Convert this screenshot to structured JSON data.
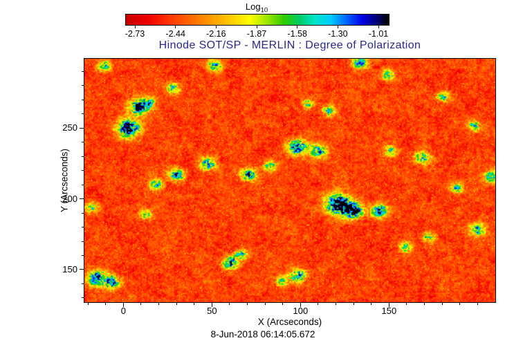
{
  "title": "Hinode SOT/SP - MERLIN : Degree of Polarization",
  "timestamp": "8-Jun-2018 06:14:05.672",
  "axes": {
    "xlabel": "X (Arcseconds)",
    "ylabel": "Y (Arcseconds)"
  },
  "colorbar": {
    "title_main": "Log",
    "title_sub": "10",
    "tick_labels": [
      "-2.73",
      "-2.44",
      "-2.16",
      "-1.87",
      "-1.58",
      "-1.30",
      "-1.01"
    ]
  },
  "colors": {
    "title_text": "#28288c",
    "axis_text": "#000000",
    "background": "#ffffff"
  },
  "chart_data": {
    "type": "heatmap",
    "title": "Hinode SOT/SP - MERLIN : Degree of Polarization",
    "xlabel": "X (Arcseconds)",
    "ylabel": "Y (Arcseconds)",
    "colorbar_scale": "Log10",
    "colorbar_tick_values": [
      -2.73,
      -2.44,
      -2.16,
      -1.87,
      -1.58,
      -1.3,
      -1.01
    ],
    "value_range_log10": [
      -2.8,
      -0.95
    ],
    "x_range": [
      -22,
      210
    ],
    "y_range": [
      127,
      299
    ],
    "x_ticks": [
      0,
      50,
      100,
      150
    ],
    "y_ticks": [
      150,
      200,
      250
    ],
    "x_minor_step": 10,
    "y_minor_step": 10,
    "description": "Quiet-Sun degree of polarization map: mostly low values (red/orange, ~10^-2.5) with magnetic-network patches of enhanced polarization (green/cyan/blue, up to ~10^-1)",
    "colormap_stops": [
      [
        0.0,
        "#c80000"
      ],
      [
        0.08,
        "#f00000"
      ],
      [
        0.16,
        "#ff3300"
      ],
      [
        0.24,
        "#ff6600"
      ],
      [
        0.32,
        "#ff9900"
      ],
      [
        0.4,
        "#ffcc00"
      ],
      [
        0.47,
        "#ffff00"
      ],
      [
        0.54,
        "#99e600"
      ],
      [
        0.6,
        "#33cc00"
      ],
      [
        0.66,
        "#00cc66"
      ],
      [
        0.72,
        "#00e6cc"
      ],
      [
        0.78,
        "#00ccff"
      ],
      [
        0.84,
        "#0066ff"
      ],
      [
        0.9,
        "#0000e6"
      ],
      [
        0.95,
        "#000080"
      ],
      [
        1.0,
        "#000000"
      ]
    ],
    "noise_seed": 11,
    "features": [
      {
        "x": 8.6,
        "y": 264.7,
        "r": 6,
        "s": 0.8
      },
      {
        "x": 2.7,
        "y": 250.0,
        "r": 7,
        "s": 0.85
      },
      {
        "x": 14.5,
        "y": 268.0,
        "r": 4,
        "s": 0.55
      },
      {
        "x": 28.0,
        "y": 278.0,
        "r": 4,
        "s": 0.5
      },
      {
        "x": 51.6,
        "y": 294.0,
        "r": 4.5,
        "s": 0.55
      },
      {
        "x": 133.6,
        "y": 296.4,
        "r": 5,
        "s": 0.6
      },
      {
        "x": 149.2,
        "y": 287.6,
        "r": 4,
        "s": 0.55
      },
      {
        "x": 98.4,
        "y": 236.8,
        "r": 6,
        "s": 0.75
      },
      {
        "x": 47.7,
        "y": 224.6,
        "r": 5,
        "s": 0.6
      },
      {
        "x": 30.1,
        "y": 217.2,
        "r": 5,
        "s": 0.6
      },
      {
        "x": 18.4,
        "y": 210.0,
        "r": 4,
        "s": 0.55
      },
      {
        "x": 71.1,
        "y": 217.2,
        "r": 5,
        "s": 0.65
      },
      {
        "x": 82.8,
        "y": 223.1,
        "r": 4,
        "s": 0.55
      },
      {
        "x": 110.2,
        "y": 233.9,
        "r": 5,
        "s": 0.6
      },
      {
        "x": 121.9,
        "y": 196.2,
        "r": 8,
        "s": 0.9
      },
      {
        "x": 129.7,
        "y": 191.4,
        "r": 6,
        "s": 0.8
      },
      {
        "x": 144.5,
        "y": 191.4,
        "r": 5,
        "s": 0.7
      },
      {
        "x": 151.2,
        "y": 233.9,
        "r": 4,
        "s": 0.5
      },
      {
        "x": 168.8,
        "y": 229.0,
        "r": 5,
        "s": 0.55
      },
      {
        "x": 188.3,
        "y": 207.5,
        "r": 4,
        "s": 0.5
      },
      {
        "x": 60.2,
        "y": 154.7,
        "r": 5,
        "s": 0.7
      },
      {
        "x": 66.4,
        "y": 160.6,
        "r": 4,
        "s": 0.55
      },
      {
        "x": 98.4,
        "y": 145.9,
        "r": 5,
        "s": 0.65
      },
      {
        "x": 89.8,
        "y": 142.0,
        "r": 4,
        "s": 0.5
      },
      {
        "x": -14.8,
        "y": 143.9,
        "r": 6,
        "s": 0.7
      },
      {
        "x": -6.3,
        "y": 141.0,
        "r": 5,
        "s": 0.6
      },
      {
        "x": 159.0,
        "y": 165.9,
        "r": 4,
        "s": 0.5
      },
      {
        "x": 172.7,
        "y": 173.3,
        "r": 4,
        "s": 0.45
      },
      {
        "x": 200.0,
        "y": 178.2,
        "r": 5,
        "s": 0.55
      },
      {
        "x": 198.0,
        "y": 251.5,
        "r": 4,
        "s": 0.5
      },
      {
        "x": 208.0,
        "y": 215.8,
        "r": 5,
        "s": 0.55
      },
      {
        "x": 12.5,
        "y": 188.9,
        "r": 4,
        "s": 0.45
      },
      {
        "x": 116.0,
        "y": 262.2,
        "r": 4,
        "s": 0.5
      },
      {
        "x": 104.3,
        "y": 267.1,
        "r": 3.5,
        "s": 0.45
      },
      {
        "x": 180.5,
        "y": 272.0,
        "r": 4,
        "s": 0.5
      },
      {
        "x": -10.9,
        "y": 294.0,
        "r": 4,
        "s": 0.5
      },
      {
        "x": -18.0,
        "y": 194.0,
        "r": 4,
        "s": 0.45
      }
    ]
  }
}
